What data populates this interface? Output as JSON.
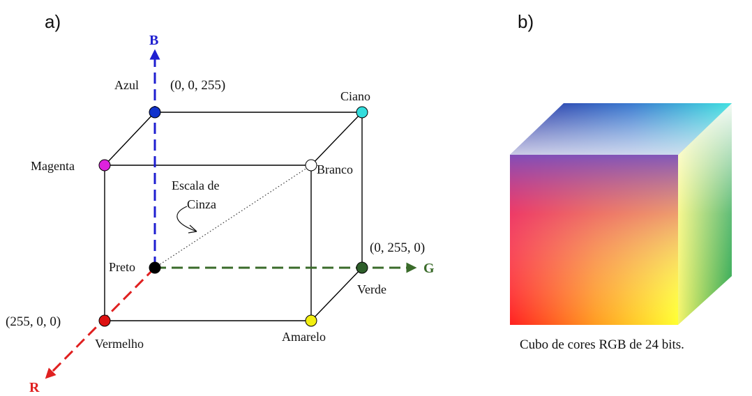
{
  "panels": {
    "a": "a)",
    "b": "b)"
  },
  "axes": {
    "blue": {
      "label": "B",
      "color": "#1f1fd0"
    },
    "green": {
      "label": "G",
      "color": "#3a6b2a"
    },
    "red": {
      "label": "R",
      "color": "#e02020"
    }
  },
  "vertices": {
    "azul": {
      "label": "Azul",
      "color": "#1133cc"
    },
    "ciano": {
      "label": "Ciano",
      "color": "#33dddd"
    },
    "magenta": {
      "label": "Magenta",
      "color": "#dd22dd"
    },
    "branco": {
      "label": "Branco",
      "color": "#ffffff"
    },
    "preto": {
      "label": "Preto",
      "color": "#000000"
    },
    "verde": {
      "label": "Verde",
      "color": "#2e5e2a"
    },
    "vermelho": {
      "label": "Vermelho",
      "color": "#dd1111"
    },
    "amarelo": {
      "label": "Amarelo",
      "color": "#f2ee10"
    }
  },
  "coordinates": {
    "blue": "(0, 0, 255)",
    "green": "(0, 255, 0)",
    "red": "(255, 0, 0)"
  },
  "gray_scale": {
    "line1": "Escala de",
    "line2": "Cinza"
  },
  "caption": "Cubo de cores RGB de 24 bits."
}
